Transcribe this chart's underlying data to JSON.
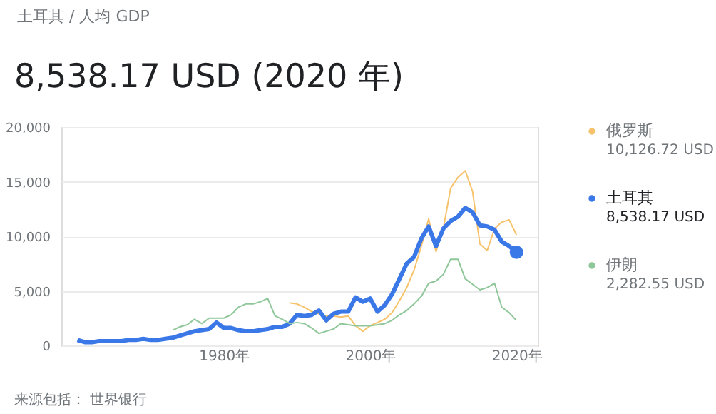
{
  "chart_data": {
    "type": "line",
    "subtitle": "土耳其 / 人均 GDP",
    "title": "8,538.17 USD (2020 年)",
    "xlim": [
      1957.8,
      2022.9
    ],
    "xticks": [
      {
        "value": 1980,
        "label": "1980年"
      },
      {
        "value": 2000,
        "label": "2000年"
      },
      {
        "value": 2020,
        "label": "2020年"
      }
    ],
    "ylim": [
      0,
      20000
    ],
    "yticks": [
      {
        "value": 0,
        "label": "0"
      },
      {
        "value": 5000,
        "label": "5,000"
      },
      {
        "value": 10000,
        "label": "10,000"
      },
      {
        "value": 15000,
        "label": "15,000"
      },
      {
        "value": 20000,
        "label": "20,000"
      }
    ],
    "grid": "y",
    "legend": "right",
    "marker": "none",
    "line_style": "solid",
    "series": [
      {
        "name": "俄罗斯",
        "color": "#f6c26b",
        "x": [
          1989,
          1990,
          1991,
          1992,
          1993,
          1994,
          1995,
          1996,
          1997,
          1998,
          1999,
          2000,
          2001,
          2002,
          2003,
          2004,
          2005,
          2006,
          2007,
          2008,
          2009,
          2010,
          2011,
          2012,
          2013,
          2014,
          2015,
          2016,
          2017,
          2018,
          2019,
          2020
        ],
        "values": [
          3900,
          3800,
          3500,
          3100,
          2900,
          2700,
          2700,
          2600,
          2700,
          1800,
          1300,
          1800,
          2100,
          2400,
          3000,
          4100,
          5300,
          6900,
          9100,
          11600,
          8600,
          10700,
          14400,
          15400,
          16000,
          14100,
          9300,
          8700,
          10700,
          11300,
          11500,
          10126.72
        ]
      },
      {
        "name": "土耳其",
        "color": "#3b78e7",
        "x": [
          1960,
          1961,
          1962,
          1963,
          1964,
          1965,
          1966,
          1967,
          1968,
          1969,
          1970,
          1971,
          1972,
          1973,
          1974,
          1975,
          1976,
          1977,
          1978,
          1979,
          1980,
          1981,
          1982,
          1983,
          1984,
          1985,
          1986,
          1987,
          1988,
          1989,
          1990,
          1991,
          1992,
          1993,
          1994,
          1995,
          1996,
          1997,
          1998,
          1999,
          2000,
          2001,
          2002,
          2003,
          2004,
          2005,
          2006,
          2007,
          2008,
          2009,
          2010,
          2011,
          2012,
          2013,
          2014,
          2015,
          2016,
          2017,
          2018,
          2019,
          2020
        ],
        "values": [
          500,
          300,
          300,
          400,
          400,
          400,
          400,
          500,
          500,
          600,
          500,
          500,
          600,
          700,
          900,
          1100,
          1300,
          1400,
          1500,
          2100,
          1600,
          1600,
          1400,
          1300,
          1300,
          1400,
          1500,
          1700,
          1700,
          2000,
          2800,
          2700,
          2800,
          3200,
          2300,
          2900,
          3100,
          3100,
          4400,
          4000,
          4300,
          3100,
          3700,
          4700,
          6100,
          7500,
          8100,
          9800,
          10900,
          9100,
          10700,
          11400,
          11800,
          12600,
          12200,
          11000,
          10900,
          10600,
          9500,
          9100,
          8538.17
        ]
      },
      {
        "name": "伊朗",
        "color": "#8fc79a",
        "x": [
          1973,
          1974,
          1975,
          1976,
          1977,
          1978,
          1979,
          1980,
          1981,
          1982,
          1983,
          1984,
          1985,
          1986,
          1987,
          1988,
          1989,
          1990,
          1991,
          1992,
          1993,
          1994,
          1995,
          1996,
          1997,
          1998,
          1999,
          2000,
          2001,
          2002,
          2003,
          2004,
          2005,
          2006,
          2007,
          2008,
          2009,
          2010,
          2011,
          2012,
          2013,
          2014,
          2015,
          2016,
          2017,
          2018,
          2019,
          2020
        ],
        "values": [
          1400,
          1700,
          1900,
          2400,
          2000,
          2500,
          2500,
          2500,
          2800,
          3500,
          3800,
          3800,
          4000,
          4300,
          2700,
          2400,
          2000,
          2100,
          2000,
          1600,
          1100,
          1300,
          1500,
          2000,
          1900,
          1800,
          1800,
          1800,
          1900,
          2000,
          2300,
          2800,
          3200,
          3800,
          4500,
          5700,
          5900,
          6500,
          7900,
          7900,
          6100,
          5600,
          5100,
          5300,
          5700,
          3500,
          3000,
          2282.55
        ]
      }
    ],
    "annotations": [
      "10,126.72 USD",
      "8,538.17 USD",
      "2,282.55 USD",
      "来源包括： 世界银行"
    ]
  }
}
